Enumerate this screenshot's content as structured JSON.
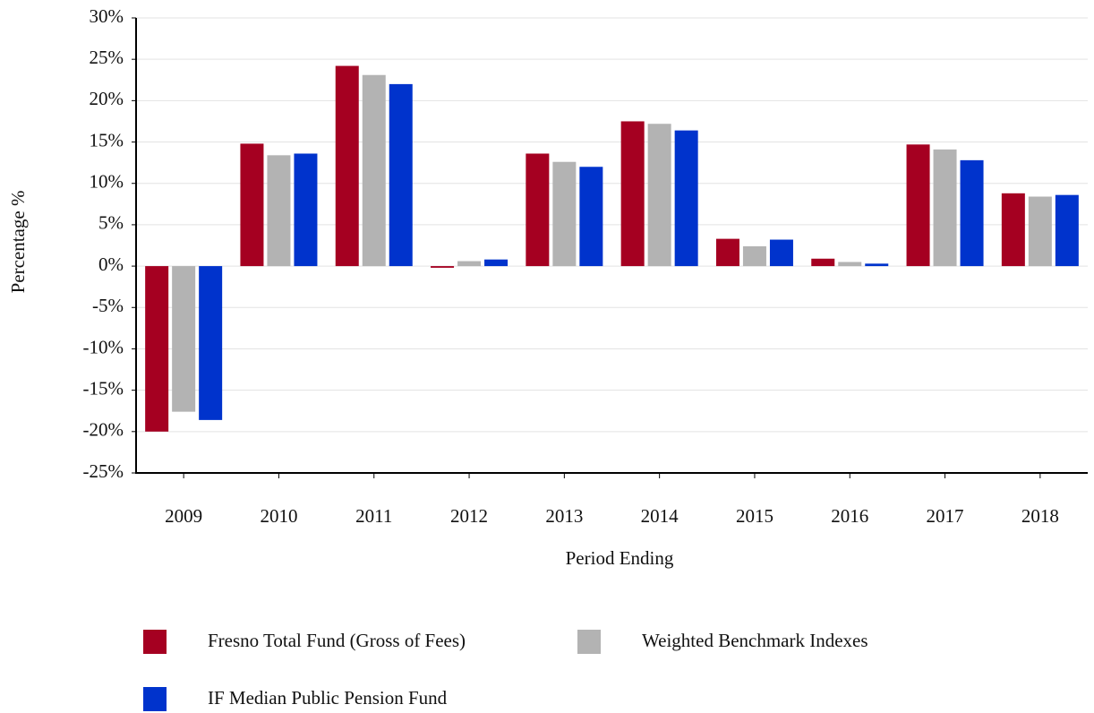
{
  "chart_data": {
    "type": "bar",
    "x_label": "Period Ending",
    "y_label": "Percentage %",
    "categories": [
      "2009",
      "2010",
      "2011",
      "2012",
      "2013",
      "2014",
      "2015",
      "2016",
      "2017",
      "2018"
    ],
    "series": [
      {
        "name": "Fresno Total Fund (Gross of Fees)",
        "color": "#a50021",
        "values": [
          -20.0,
          14.8,
          24.2,
          -0.2,
          13.6,
          17.5,
          3.3,
          0.9,
          14.7,
          8.8
        ]
      },
      {
        "name": "Weighted Benchmark Indexes",
        "color": "#b3b3b3",
        "values": [
          -17.6,
          13.4,
          23.1,
          0.6,
          12.6,
          17.2,
          2.4,
          0.5,
          14.1,
          8.4
        ]
      },
      {
        "name": "IF Median Public Pension Fund",
        "color": "#0033cc",
        "values": [
          -18.6,
          13.6,
          22.0,
          0.8,
          12.0,
          16.4,
          3.2,
          0.3,
          12.8,
          8.6
        ]
      }
    ],
    "ylim": [
      -25,
      30
    ],
    "yticks": [
      {
        "value": -25,
        "label": "-25%"
      },
      {
        "value": -20,
        "label": "-20%"
      },
      {
        "value": -15,
        "label": "-15%"
      },
      {
        "value": -10,
        "label": "-10%"
      },
      {
        "value": -5,
        "label": "-5%"
      },
      {
        "value": 0,
        "label": "0%"
      },
      {
        "value": 5,
        "label": "5%"
      },
      {
        "value": 10,
        "label": "10%"
      },
      {
        "value": 15,
        "label": "15%"
      },
      {
        "value": 20,
        "label": "20%"
      },
      {
        "value": 25,
        "label": "25%"
      },
      {
        "value": 30,
        "label": "30%"
      }
    ],
    "grid": true,
    "legend": "bottom"
  }
}
